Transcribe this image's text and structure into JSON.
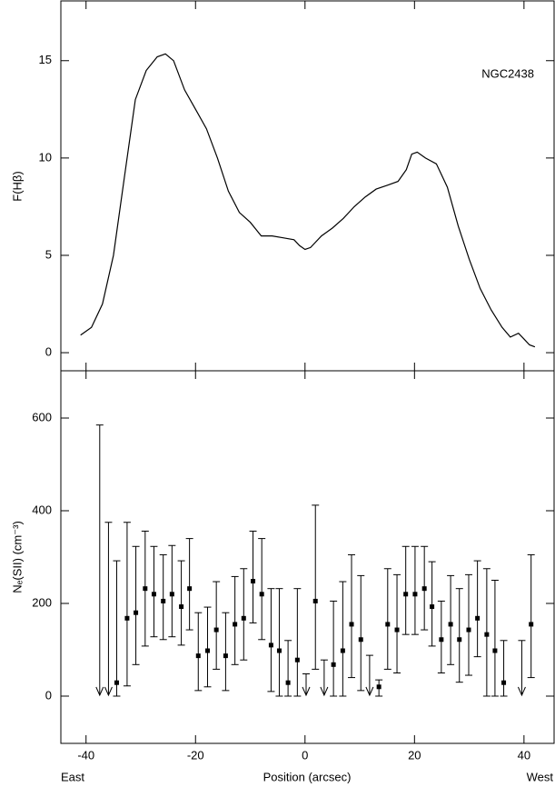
{
  "chart_data": [
    {
      "type": "line",
      "annotation": "NGC2438",
      "y_label": "F(Hβ)",
      "x": [
        -41,
        -39,
        -37,
        -35,
        -33,
        -31,
        -29,
        -27,
        -25.5,
        -24,
        -22,
        -20,
        -18,
        -16,
        -14,
        -12,
        -10,
        -8,
        -6,
        -4,
        -2,
        -1,
        0,
        1,
        3,
        5,
        7,
        9,
        11,
        13,
        15,
        17,
        18.5,
        19.5,
        20.5,
        22,
        24,
        26,
        28,
        30,
        32,
        34,
        36,
        37.5,
        39,
        40,
        41,
        42
      ],
      "values": [
        0.9,
        1.3,
        2.5,
        5,
        9,
        13,
        14.5,
        15.2,
        15.35,
        15,
        13.5,
        12.5,
        11.5,
        10,
        8.3,
        7.2,
        6.7,
        6.0,
        6.0,
        5.9,
        5.8,
        5.5,
        5.3,
        5.4,
        6.0,
        6.4,
        6.9,
        7.5,
        8.0,
        8.4,
        8.6,
        8.8,
        9.4,
        10.2,
        10.3,
        10.0,
        9.7,
        8.5,
        6.5,
        4.8,
        3.3,
        2.2,
        1.3,
        0.8,
        1.0,
        0.7,
        0.4,
        0.3
      ],
      "color": "#000000",
      "xlim": [
        -44.6,
        45.5
      ],
      "xticks": [
        -40,
        -20,
        0,
        20,
        40
      ],
      "ylim": [
        -0.93,
        18.07
      ],
      "yticks": [
        0,
        5,
        10,
        15
      ]
    },
    {
      "type": "errorbar",
      "y_label": "Nₑ(SII) (cm⁻³)",
      "x_label": "Position (arcsec)",
      "annotations": [
        "East",
        "West"
      ],
      "x": [
        -34.4,
        -32.5,
        -30.9,
        -29.2,
        -27.6,
        -25.9,
        -24.3,
        -22.6,
        -21.1,
        -19.5,
        -17.8,
        -16.2,
        -14.5,
        -12.8,
        -11.2,
        -9.5,
        -7.9,
        -6.2,
        -4.7,
        -3.1,
        -1.4,
        1.9,
        5.2,
        6.9,
        8.5,
        10.2,
        13.5,
        15.1,
        16.8,
        18.4,
        20.1,
        21.8,
        23.2,
        24.9,
        26.6,
        28.2,
        29.9,
        31.5,
        33.2,
        34.7,
        36.3,
        41.3
      ],
      "values": [
        29,
        168,
        180,
        232,
        220,
        205,
        220,
        193,
        232,
        87,
        98,
        143,
        87,
        155,
        168,
        248,
        220,
        110,
        98,
        29,
        78,
        205,
        68,
        98,
        155,
        122,
        20,
        155,
        143,
        220,
        220,
        232,
        193,
        122,
        155,
        122,
        143,
        168,
        133,
        98,
        29,
        155
      ],
      "lower": [
        0,
        22,
        68,
        108,
        128,
        122,
        128,
        110,
        143,
        12,
        20,
        58,
        12,
        68,
        78,
        158,
        122,
        10,
        0,
        0,
        0,
        58,
        0,
        0,
        40,
        12,
        0,
        58,
        50,
        133,
        133,
        143,
        108,
        50,
        68,
        30,
        45,
        85,
        0,
        0,
        0,
        40
      ],
      "upper": [
        292,
        375,
        323,
        356,
        323,
        305,
        325,
        292,
        340,
        180,
        192,
        247,
        180,
        258,
        275,
        356,
        340,
        232,
        232,
        120,
        232,
        412,
        205,
        247,
        305,
        260,
        35,
        275,
        262,
        323,
        323,
        323,
        290,
        205,
        260,
        232,
        262,
        292,
        275,
        250,
        120,
        305
      ],
      "limits_x": [
        -37.5,
        -35.9,
        0.2,
        3.5,
        11.8,
        39.6
      ],
      "limits_upper": [
        585,
        375,
        48,
        78,
        88,
        120
      ],
      "color": "#000000",
      "xlim": [
        -44.6,
        45.5
      ],
      "xticks": [
        -40,
        -20,
        0,
        20,
        40
      ],
      "ylim": [
        -102,
        702
      ],
      "yticks": [
        0,
        200,
        400,
        600
      ]
    }
  ]
}
